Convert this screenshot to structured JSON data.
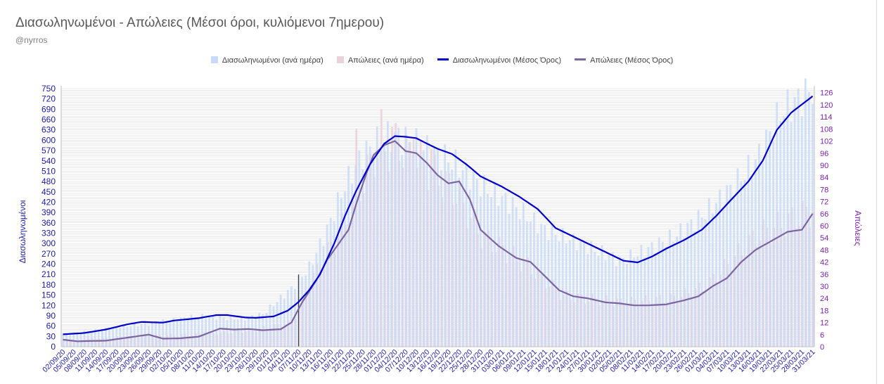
{
  "chart_data": {
    "type": "bar+line",
    "title": "Διασωληνωμένοι - Απώλειες (Μέσοι όροι, κυλιόμενοι 7ημερου)",
    "subtitle": "@nyrros",
    "ylabel_left": "Διασωληνωμένοι",
    "ylabel_right": "Απώλειες",
    "ylim_left": [
      0,
      750
    ],
    "ylim_right": [
      0,
      128
    ],
    "yticks_left": [
      "0",
      "30",
      "60",
      "90",
      "120",
      "150",
      "180",
      "210",
      "240",
      "270",
      "300",
      "330",
      "360",
      "390",
      "420",
      "450",
      "480",
      "510",
      "540",
      "570",
      "600",
      "630",
      "660",
      "690",
      "720",
      "750"
    ],
    "yticks_right": [
      "0",
      "6",
      "12",
      "18",
      "24",
      "30",
      "36",
      "42",
      "48",
      "54",
      "60",
      "66",
      "72",
      "78",
      "84",
      "90",
      "96",
      "102",
      "108",
      "114",
      "120",
      "126"
    ],
    "start_date": "2020-09-02",
    "end_date": "2021-03-31",
    "xticks": [
      "02/09/20",
      "05/09/20",
      "08/09/20",
      "11/09/20",
      "14/09/20",
      "17/09/20",
      "20/09/20",
      "23/09/20",
      "26/09/20",
      "29/09/20",
      "02/10/20",
      "05/10/20",
      "08/10/20",
      "11/10/20",
      "14/10/20",
      "17/10/20",
      "20/10/20",
      "23/10/20",
      "26/10/20",
      "29/10/20",
      "01/11/20",
      "04/11/20",
      "07/11/20",
      "10/11/20",
      "13/11/20",
      "16/11/20",
      "19/11/20",
      "22/11/20",
      "25/11/20",
      "28/11/20",
      "01/12/20",
      "04/12/20",
      "07/12/20",
      "10/12/20",
      "13/12/20",
      "16/12/20",
      "19/12/20",
      "22/12/20",
      "25/12/20",
      "28/12/20",
      "31/12/20",
      "03/01/21",
      "06/01/21",
      "09/01/21",
      "12/01/21",
      "15/01/21",
      "18/01/21",
      "21/01/21",
      "24/01/21",
      "27/01/21",
      "30/01/21",
      "02/02/21",
      "05/02/21",
      "08/02/21",
      "11/02/21",
      "14/02/21",
      "17/02/21",
      "20/02/21",
      "23/02/21",
      "26/02/21",
      "01/03/21",
      "04/03/21",
      "07/03/21",
      "10/03/21",
      "13/03/21",
      "16/03/21",
      "19/03/21",
      "22/03/21",
      "25/03/21",
      "28/03/21",
      "31/03/21"
    ],
    "marker_date": "2020-11-07",
    "grid": true,
    "legend_position": "top",
    "series": [
      {
        "name": "Διασωληνωμένοι (ανά ημέρα)",
        "kind": "bar",
        "axis": "left",
        "color": "#c9daf8",
        "anchors": [
          [
            "2020-09-02",
            36
          ],
          [
            "2020-09-20",
            60
          ],
          [
            "2020-09-28",
            70
          ],
          [
            "2020-10-10",
            90
          ],
          [
            "2020-10-22",
            80
          ],
          [
            "2020-10-28",
            95
          ],
          [
            "2020-11-05",
            170
          ],
          [
            "2020-11-10",
            230
          ],
          [
            "2020-11-15",
            340
          ],
          [
            "2020-11-20",
            470
          ],
          [
            "2020-11-25",
            560
          ],
          [
            "2020-12-01",
            610
          ],
          [
            "2020-12-05",
            610
          ],
          [
            "2020-12-12",
            580
          ],
          [
            "2020-12-20",
            540
          ],
          [
            "2020-12-28",
            470
          ],
          [
            "2021-01-05",
            420
          ],
          [
            "2021-01-15",
            340
          ],
          [
            "2021-01-25",
            300
          ],
          [
            "2021-02-05",
            250
          ],
          [
            "2021-02-12",
            280
          ],
          [
            "2021-02-20",
            320
          ],
          [
            "2021-02-28",
            380
          ],
          [
            "2021-03-08",
            460
          ],
          [
            "2021-03-15",
            540
          ],
          [
            "2021-03-22",
            680
          ],
          [
            "2021-03-31",
            750
          ]
        ]
      },
      {
        "name": "Απώλειες (ανά ημέρα)",
        "kind": "bar",
        "axis": "right",
        "color": "#ead1dc",
        "anchors": [
          [
            "2020-09-02",
            3
          ],
          [
            "2020-09-20",
            5
          ],
          [
            "2020-10-10",
            6
          ],
          [
            "2020-10-25",
            8
          ],
          [
            "2020-11-05",
            12
          ],
          [
            "2020-11-12",
            38
          ],
          [
            "2020-11-20",
            62
          ],
          [
            "2020-11-28",
            95
          ],
          [
            "2020-12-04",
            100
          ],
          [
            "2020-12-12",
            90
          ],
          [
            "2020-12-20",
            78
          ],
          [
            "2020-12-28",
            55
          ],
          [
            "2021-01-10",
            40
          ],
          [
            "2021-01-20",
            25
          ],
          [
            "2021-02-05",
            22
          ],
          [
            "2021-02-20",
            24
          ],
          [
            "2021-03-01",
            30
          ],
          [
            "2021-03-15",
            55
          ],
          [
            "2021-03-31",
            68
          ]
        ],
        "spikes": [
          [
            "2020-11-23",
            108
          ],
          [
            "2020-11-30",
            118
          ],
          [
            "2020-12-03",
            109
          ],
          [
            "2020-12-09",
            103
          ],
          [
            "2020-12-14",
            98
          ]
        ]
      },
      {
        "name": "Διασωληνωμένοι (Μέσος Όρος)",
        "kind": "line",
        "axis": "left",
        "color": "#0000c8",
        "anchors": [
          [
            "2020-09-02",
            36
          ],
          [
            "2020-09-08",
            40
          ],
          [
            "2020-09-14",
            50
          ],
          [
            "2020-09-20",
            65
          ],
          [
            "2020-09-24",
            72
          ],
          [
            "2020-09-30",
            70
          ],
          [
            "2020-10-03",
            76
          ],
          [
            "2020-10-10",
            83
          ],
          [
            "2020-10-15",
            92
          ],
          [
            "2020-10-18",
            92
          ],
          [
            "2020-10-23",
            85
          ],
          [
            "2020-10-26",
            84
          ],
          [
            "2020-10-31",
            88
          ],
          [
            "2020-11-04",
            105
          ],
          [
            "2020-11-07",
            130
          ],
          [
            "2020-11-10",
            165
          ],
          [
            "2020-11-13",
            210
          ],
          [
            "2020-11-17",
            300
          ],
          [
            "2020-11-20",
            380
          ],
          [
            "2020-11-23",
            450
          ],
          [
            "2020-11-27",
            530
          ],
          [
            "2020-12-01",
            590
          ],
          [
            "2020-12-04",
            612
          ],
          [
            "2020-12-07",
            610
          ],
          [
            "2020-12-10",
            606
          ],
          [
            "2020-12-13",
            590
          ],
          [
            "2020-12-16",
            575
          ],
          [
            "2020-12-20",
            560
          ],
          [
            "2020-12-24",
            530
          ],
          [
            "2020-12-28",
            495
          ],
          [
            "2021-01-03",
            465
          ],
          [
            "2021-01-08",
            435
          ],
          [
            "2021-01-13",
            400
          ],
          [
            "2021-01-18",
            345
          ],
          [
            "2021-01-22",
            325
          ],
          [
            "2021-01-27",
            300
          ],
          [
            "2021-02-01",
            275
          ],
          [
            "2021-02-06",
            250
          ],
          [
            "2021-02-10",
            245
          ],
          [
            "2021-02-14",
            262
          ],
          [
            "2021-02-18",
            285
          ],
          [
            "2021-02-23",
            310
          ],
          [
            "2021-02-28",
            340
          ],
          [
            "2021-03-04",
            380
          ],
          [
            "2021-03-08",
            425
          ],
          [
            "2021-03-13",
            480
          ],
          [
            "2021-03-17",
            540
          ],
          [
            "2021-03-21",
            630
          ],
          [
            "2021-03-25",
            680
          ],
          [
            "2021-03-29",
            712
          ],
          [
            "2021-03-31",
            728
          ]
        ]
      },
      {
        "name": "Απώλειες (Μέσος Όρος)",
        "kind": "line",
        "axis": "right",
        "color": "#7c659f",
        "anchors": [
          [
            "2020-09-02",
            3.5
          ],
          [
            "2020-09-06",
            2.7
          ],
          [
            "2020-09-14",
            3
          ],
          [
            "2020-09-20",
            4.5
          ],
          [
            "2020-09-26",
            6
          ],
          [
            "2020-09-30",
            4
          ],
          [
            "2020-10-05",
            4.2
          ],
          [
            "2020-10-10",
            5
          ],
          [
            "2020-10-16",
            9
          ],
          [
            "2020-10-20",
            8.5
          ],
          [
            "2020-10-24",
            8.8
          ],
          [
            "2020-10-28",
            8.2
          ],
          [
            "2020-11-02",
            8.7
          ],
          [
            "2020-11-05",
            12
          ],
          [
            "2020-11-08",
            22
          ],
          [
            "2020-11-12",
            33
          ],
          [
            "2020-11-15",
            43
          ],
          [
            "2020-11-19",
            53
          ],
          [
            "2020-11-21",
            58
          ],
          [
            "2020-11-23",
            70
          ],
          [
            "2020-11-26",
            86
          ],
          [
            "2020-11-28",
            95
          ],
          [
            "2020-12-01",
            100
          ],
          [
            "2020-12-04",
            102
          ],
          [
            "2020-12-07",
            97
          ],
          [
            "2020-12-10",
            96
          ],
          [
            "2020-12-13",
            91
          ],
          [
            "2020-12-16",
            85
          ],
          [
            "2020-12-19",
            81
          ],
          [
            "2020-12-22",
            82
          ],
          [
            "2020-12-25",
            73
          ],
          [
            "2020-12-28",
            58
          ],
          [
            "2021-01-02",
            50
          ],
          [
            "2021-01-07",
            44
          ],
          [
            "2021-01-11",
            42
          ],
          [
            "2021-01-15",
            35
          ],
          [
            "2021-01-19",
            28
          ],
          [
            "2021-01-23",
            25
          ],
          [
            "2021-01-27",
            24
          ],
          [
            "2021-02-01",
            22
          ],
          [
            "2021-02-05",
            21.5
          ],
          [
            "2021-02-09",
            20.5
          ],
          [
            "2021-02-13",
            20.5
          ],
          [
            "2021-02-18",
            21
          ],
          [
            "2021-02-23",
            23
          ],
          [
            "2021-02-27",
            25
          ],
          [
            "2021-03-03",
            30
          ],
          [
            "2021-03-07",
            34
          ],
          [
            "2021-03-11",
            42
          ],
          [
            "2021-03-15",
            48
          ],
          [
            "2021-03-20",
            53
          ],
          [
            "2021-03-24",
            57
          ],
          [
            "2021-03-28",
            58
          ],
          [
            "2021-03-31",
            66
          ]
        ]
      }
    ]
  }
}
